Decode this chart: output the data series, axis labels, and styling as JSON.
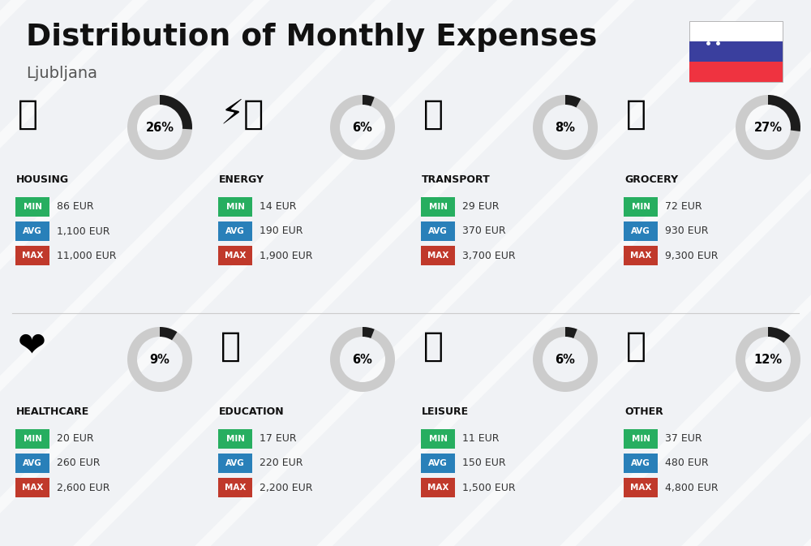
{
  "title": "Distribution of Monthly Expenses",
  "subtitle": "Ljubljana",
  "bg_color": "#f0f2f5",
  "categories": [
    {
      "name": "HOUSING",
      "pct": 26,
      "min_val": "86 EUR",
      "avg_val": "1,100 EUR",
      "max_val": "11,000 EUR",
      "col": 0,
      "row": 0
    },
    {
      "name": "ENERGY",
      "pct": 6,
      "min_val": "14 EUR",
      "avg_val": "190 EUR",
      "max_val": "1,900 EUR",
      "col": 1,
      "row": 0
    },
    {
      "name": "TRANSPORT",
      "pct": 8,
      "min_val": "29 EUR",
      "avg_val": "370 EUR",
      "max_val": "3,700 EUR",
      "col": 2,
      "row": 0
    },
    {
      "name": "GROCERY",
      "pct": 27,
      "min_val": "72 EUR",
      "avg_val": "930 EUR",
      "max_val": "9,300 EUR",
      "col": 3,
      "row": 0
    },
    {
      "name": "HEALTHCARE",
      "pct": 9,
      "min_val": "20 EUR",
      "avg_val": "260 EUR",
      "max_val": "2,600 EUR",
      "col": 0,
      "row": 1
    },
    {
      "name": "EDUCATION",
      "pct": 6,
      "min_val": "17 EUR",
      "avg_val": "220 EUR",
      "max_val": "2,200 EUR",
      "col": 1,
      "row": 1
    },
    {
      "name": "LEISURE",
      "pct": 6,
      "min_val": "11 EUR",
      "avg_val": "150 EUR",
      "max_val": "1,500 EUR",
      "col": 2,
      "row": 1
    },
    {
      "name": "OTHER",
      "pct": 12,
      "min_val": "37 EUR",
      "avg_val": "480 EUR",
      "max_val": "4,800 EUR",
      "col": 3,
      "row": 1
    }
  ],
  "min_color": "#27ae60",
  "avg_color": "#2980b9",
  "max_color": "#c0392b",
  "donut_dark": "#1c1c1c",
  "donut_light": "#cccccc",
  "category_name_color": "#111111",
  "value_color": "#333333",
  "title_color": "#111111",
  "subtitle_color": "#555555",
  "flag_blue": "#3a3f9e",
  "flag_red": "#ef3340"
}
